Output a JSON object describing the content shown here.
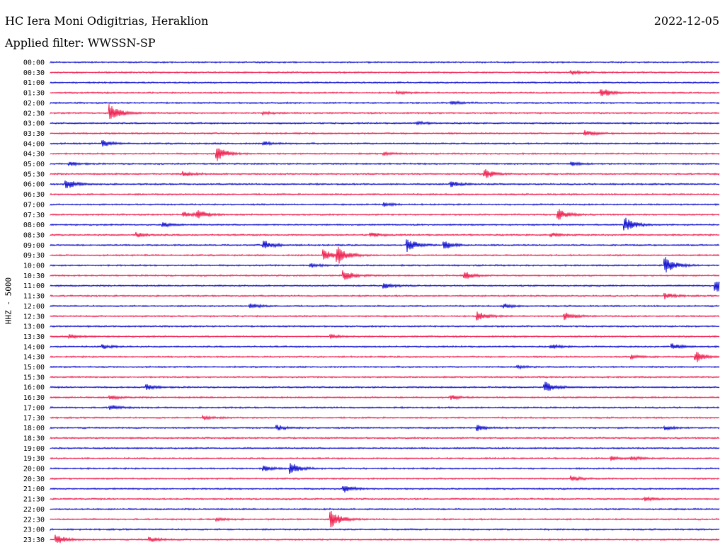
{
  "header": {
    "station": "HC Iera Moni Odigitrias, Heraklion",
    "date": "2022-12-05",
    "filter": "Applied filter: WWSSN-SP"
  },
  "colors": {
    "even_trace": "#0000cc",
    "odd_trace": "#ee1144"
  },
  "chart_data": {
    "type": "line",
    "title": "HC Iera Moni Odigitrias, Heraklion",
    "subtitle": "Applied filter: WWSSN-SP",
    "ylabel": "HHZ - 5000",
    "row_labels": [
      "00:00",
      "00:30",
      "01:00",
      "01:30",
      "02:00",
      "02:30",
      "03:00",
      "03:30",
      "04:00",
      "04:30",
      "05:00",
      "05:30",
      "06:00",
      "06:30",
      "07:00",
      "07:30",
      "08:00",
      "08:30",
      "09:00",
      "09:30",
      "10:00",
      "10:30",
      "11:00",
      "11:30",
      "12:00",
      "12:30",
      "13:00",
      "13:30",
      "14:00",
      "14:30",
      "15:00",
      "15:30",
      "16:00",
      "16:30",
      "17:00",
      "17:30",
      "18:00",
      "18:30",
      "19:00",
      "19:30",
      "20:00",
      "20:30",
      "21:00",
      "21:30",
      "22:00",
      "22:30",
      "23:00",
      "23:30"
    ],
    "x_range": [
      0,
      1
    ],
    "series_colors": [
      "#0000cc",
      "#ee1144"
    ],
    "events": [
      {
        "row": 1,
        "t": 0.78,
        "amp": 0.2
      },
      {
        "row": 3,
        "t": 0.825,
        "amp": 0.5
      },
      {
        "row": 3,
        "t": 0.52,
        "amp": 0.15
      },
      {
        "row": 4,
        "t": 0.6,
        "amp": 0.2
      },
      {
        "row": 5,
        "t": 0.09,
        "amp": 1.0
      },
      {
        "row": 5,
        "t": 0.32,
        "amp": 0.15
      },
      {
        "row": 6,
        "t": 0.55,
        "amp": 0.15
      },
      {
        "row": 7,
        "t": 0.8,
        "amp": 0.3
      },
      {
        "row": 8,
        "t": 0.08,
        "amp": 0.3
      },
      {
        "row": 8,
        "t": 0.32,
        "amp": 0.2
      },
      {
        "row": 9,
        "t": 0.25,
        "amp": 0.8
      },
      {
        "row": 9,
        "t": 0.5,
        "amp": 0.15
      },
      {
        "row": 10,
        "t": 0.03,
        "amp": 0.2
      },
      {
        "row": 10,
        "t": 0.78,
        "amp": 0.2
      },
      {
        "row": 11,
        "t": 0.2,
        "amp": 0.25
      },
      {
        "row": 11,
        "t": 0.65,
        "amp": 0.5
      },
      {
        "row": 12,
        "t": 0.025,
        "amp": 0.5
      },
      {
        "row": 12,
        "t": 0.6,
        "amp": 0.3
      },
      {
        "row": 14,
        "t": 0.5,
        "amp": 0.2
      },
      {
        "row": 15,
        "t": 0.2,
        "amp": 0.3
      },
      {
        "row": 15,
        "t": 0.22,
        "amp": 0.5
      },
      {
        "row": 15,
        "t": 0.76,
        "amp": 0.6
      },
      {
        "row": 16,
        "t": 0.86,
        "amp": 0.8
      },
      {
        "row": 16,
        "t": 0.17,
        "amp": 0.2
      },
      {
        "row": 17,
        "t": 0.13,
        "amp": 0.25
      },
      {
        "row": 17,
        "t": 0.48,
        "amp": 0.25
      },
      {
        "row": 17,
        "t": 0.75,
        "amp": 0.2
      },
      {
        "row": 18,
        "t": 0.32,
        "amp": 0.5
      },
      {
        "row": 18,
        "t": 0.535,
        "amp": 0.7
      },
      {
        "row": 18,
        "t": 0.59,
        "amp": 0.4
      },
      {
        "row": 19,
        "t": 0.41,
        "amp": 0.6
      },
      {
        "row": 19,
        "t": 0.43,
        "amp": 0.9
      },
      {
        "row": 20,
        "t": 0.92,
        "amp": 0.9
      },
      {
        "row": 20,
        "t": 0.39,
        "amp": 0.2
      },
      {
        "row": 21,
        "t": 0.44,
        "amp": 0.6
      },
      {
        "row": 21,
        "t": 0.62,
        "amp": 0.4
      },
      {
        "row": 22,
        "t": 0.5,
        "amp": 0.3
      },
      {
        "row": 22,
        "t": 0.995,
        "amp": 0.8
      },
      {
        "row": 23,
        "t": 0.92,
        "amp": 0.3
      },
      {
        "row": 24,
        "t": 0.3,
        "amp": 0.25
      },
      {
        "row": 24,
        "t": 0.68,
        "amp": 0.2
      },
      {
        "row": 25,
        "t": 0.64,
        "amp": 0.5
      },
      {
        "row": 25,
        "t": 0.77,
        "amp": 0.4
      },
      {
        "row": 27,
        "t": 0.03,
        "amp": 0.2
      },
      {
        "row": 27,
        "t": 0.42,
        "amp": 0.2
      },
      {
        "row": 28,
        "t": 0.08,
        "amp": 0.2
      },
      {
        "row": 28,
        "t": 0.75,
        "amp": 0.2
      },
      {
        "row": 28,
        "t": 0.93,
        "amp": 0.3
      },
      {
        "row": 29,
        "t": 0.965,
        "amp": 0.6
      },
      {
        "row": 29,
        "t": 0.87,
        "amp": 0.25
      },
      {
        "row": 30,
        "t": 0.7,
        "amp": 0.15
      },
      {
        "row": 32,
        "t": 0.145,
        "amp": 0.3
      },
      {
        "row": 32,
        "t": 0.74,
        "amp": 0.6
      },
      {
        "row": 33,
        "t": 0.09,
        "amp": 0.2
      },
      {
        "row": 33,
        "t": 0.6,
        "amp": 0.2
      },
      {
        "row": 34,
        "t": 0.09,
        "amp": 0.25
      },
      {
        "row": 35,
        "t": 0.23,
        "amp": 0.2
      },
      {
        "row": 36,
        "t": 0.34,
        "amp": 0.25
      },
      {
        "row": 36,
        "t": 0.64,
        "amp": 0.3
      },
      {
        "row": 36,
        "t": 0.92,
        "amp": 0.2
      },
      {
        "row": 39,
        "t": 0.84,
        "amp": 0.2
      },
      {
        "row": 39,
        "t": 0.87,
        "amp": 0.2
      },
      {
        "row": 40,
        "t": 0.32,
        "amp": 0.25
      },
      {
        "row": 40,
        "t": 0.36,
        "amp": 0.6
      },
      {
        "row": 41,
        "t": 0.78,
        "amp": 0.3
      },
      {
        "row": 42,
        "t": 0.44,
        "amp": 0.35
      },
      {
        "row": 43,
        "t": 0.89,
        "amp": 0.2
      },
      {
        "row": 45,
        "t": 0.42,
        "amp": 1.0
      },
      {
        "row": 45,
        "t": 0.25,
        "amp": 0.15
      },
      {
        "row": 47,
        "t": 0.01,
        "amp": 0.5
      },
      {
        "row": 47,
        "t": 0.15,
        "amp": 0.3
      }
    ]
  }
}
